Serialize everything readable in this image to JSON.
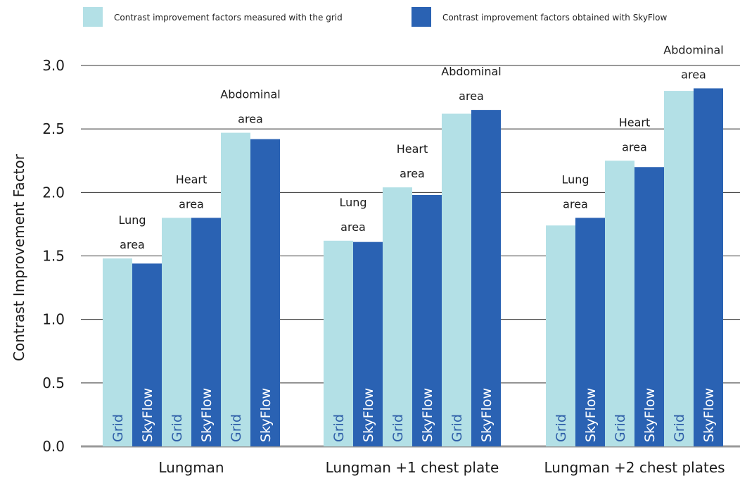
{
  "chart_data": {
    "type": "bar",
    "title": "",
    "xlabel": "",
    "ylabel": "Contrast Improvement Factor",
    "ylim": [
      0,
      3.0
    ],
    "yticks": [
      "0.0",
      "0.5",
      "1.0",
      "1.5",
      "2.0",
      "2.5",
      "3.0"
    ],
    "grid": true,
    "legend_position": "top",
    "categories": [
      "Lungman",
      "Lungman +1 chest plate",
      "Lungman +2 chest plates"
    ],
    "subgroups": [
      {
        "line1": "Lung",
        "line2": "area"
      },
      {
        "line1": "Heart",
        "line2": "area"
      },
      {
        "line1": "Abdominal",
        "line2": "area"
      }
    ],
    "series": [
      {
        "name": "Contrast improvement factors measured with the grid",
        "bar_label": "Grid",
        "color": "#b3e0e6",
        "label_color": "#2f5fa8",
        "values": [
          [
            1.48,
            1.8,
            2.47
          ],
          [
            1.62,
            2.04,
            2.62
          ],
          [
            1.74,
            2.25,
            2.8
          ]
        ]
      },
      {
        "name": "Contrast improvement factors obtained with SkyFlow",
        "bar_label": "SkyFlow",
        "color": "#2a62b3",
        "label_color": "#ffffff",
        "values": [
          [
            1.44,
            1.8,
            2.42
          ],
          [
            1.61,
            1.98,
            2.65
          ],
          [
            1.8,
            2.2,
            2.82
          ]
        ]
      }
    ]
  }
}
